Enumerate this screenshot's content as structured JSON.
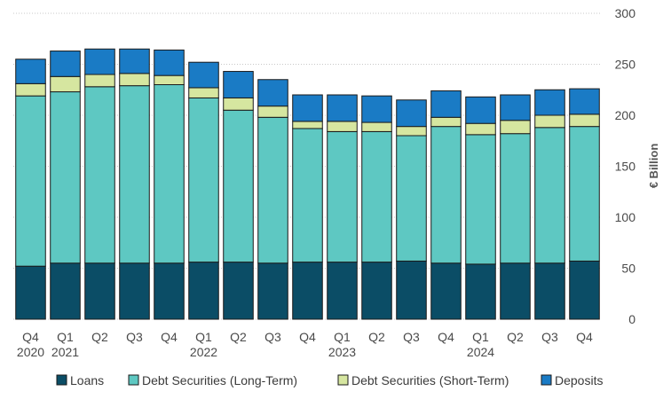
{
  "chart_data": {
    "type": "bar",
    "stacked": true,
    "categories": [
      [
        "Q4",
        "2020"
      ],
      [
        "Q1",
        "2021"
      ],
      [
        "Q2",
        ""
      ],
      [
        "Q3",
        ""
      ],
      [
        "Q4",
        ""
      ],
      [
        "Q1",
        "2022"
      ],
      [
        "Q2",
        ""
      ],
      [
        "Q3",
        ""
      ],
      [
        "Q4",
        ""
      ],
      [
        "Q1",
        "2023"
      ],
      [
        "Q2",
        ""
      ],
      [
        "Q3",
        ""
      ],
      [
        "Q4",
        ""
      ],
      [
        "Q1",
        "2024"
      ],
      [
        "Q2",
        ""
      ],
      [
        "Q3",
        ""
      ],
      [
        "Q4",
        ""
      ]
    ],
    "series": [
      {
        "name": "Loans",
        "color": "#0b4d66",
        "values": [
          52,
          55,
          55,
          55,
          55,
          56,
          56,
          55,
          56,
          56,
          56,
          57,
          55,
          54,
          55,
          55,
          57
        ]
      },
      {
        "name": "Debt Securities (Long-Term)",
        "color": "#5ec8c2",
        "values": [
          167,
          168,
          173,
          174,
          175,
          161,
          149,
          143,
          131,
          128,
          128,
          123,
          134,
          127,
          127,
          133,
          132
        ]
      },
      {
        "name": "Debt Securities (Short-Term)",
        "color": "#d6e6a0",
        "values": [
          12,
          15,
          12,
          12,
          9,
          10,
          12,
          11,
          7,
          10,
          9,
          9,
          9,
          11,
          13,
          12,
          12
        ]
      },
      {
        "name": "Deposits",
        "color": "#1a7bc5",
        "values": [
          24,
          25,
          25,
          24,
          25,
          25,
          26,
          26,
          26,
          26,
          26,
          26,
          26,
          26,
          25,
          25,
          25
        ]
      }
    ],
    "title": "",
    "xlabel": "",
    "ylabel": "€ Billion",
    "ylim": [
      0,
      300
    ],
    "yticks": [
      0,
      50,
      100,
      150,
      200,
      250,
      300
    ],
    "y_axis_side": "right",
    "grid": "horizontal-dotted",
    "legend_position": "bottom"
  }
}
